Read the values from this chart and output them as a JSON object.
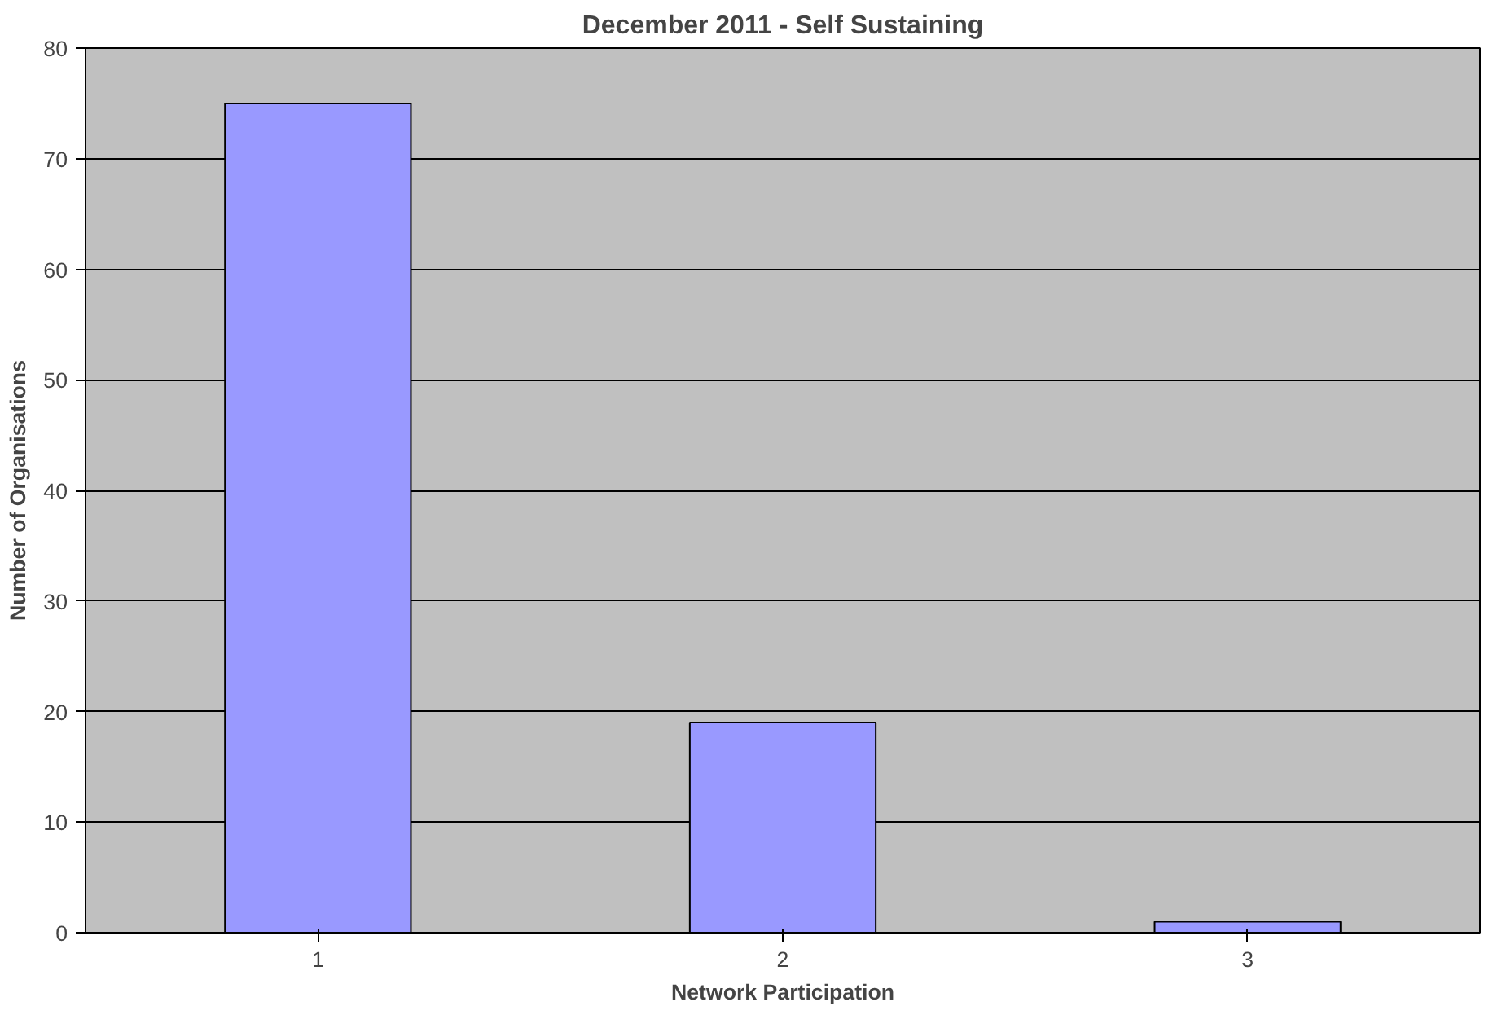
{
  "chart_data": {
    "type": "bar",
    "title": "December 2011 - Self Sustaining",
    "xlabel": "Network Participation",
    "ylabel": "Number of Organisations",
    "categories": [
      "1",
      "2",
      "3"
    ],
    "values": [
      75,
      19,
      1
    ],
    "color": "#9999ff",
    "ylim": [
      0,
      80
    ],
    "yticks": [
      0,
      10,
      20,
      30,
      40,
      50,
      60,
      70,
      80
    ],
    "grid": "y"
  }
}
